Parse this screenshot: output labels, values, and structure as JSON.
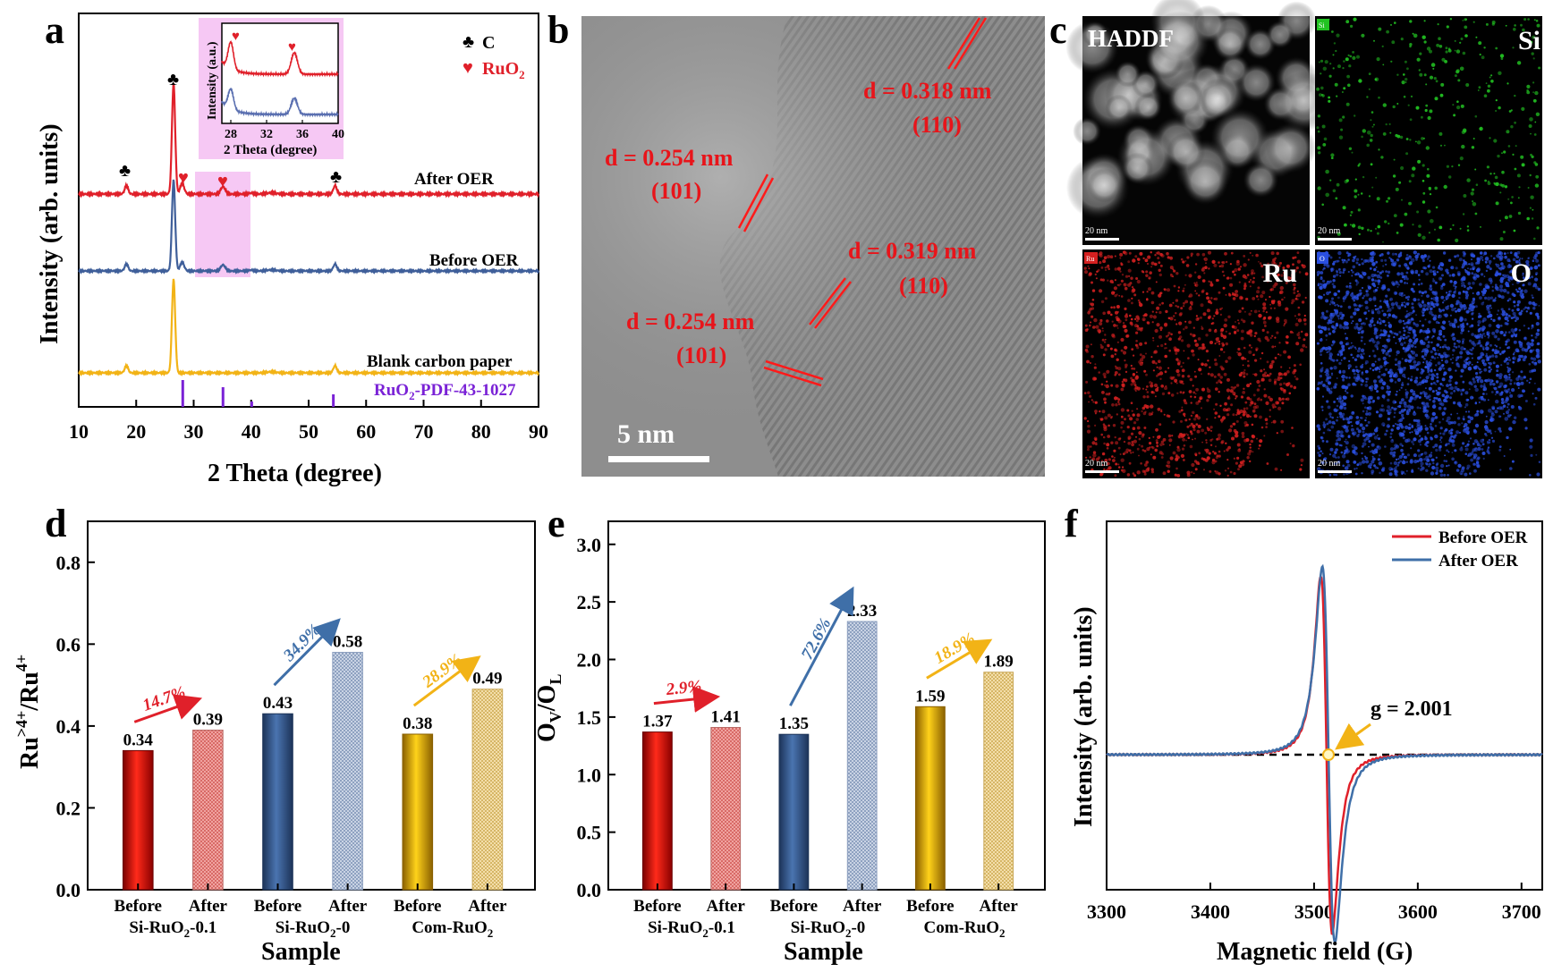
{
  "chart_data": [
    {
      "panel": "a",
      "type": "line",
      "xlabel": "2 Theta (degree)",
      "ylabel": "Intensity (arb. units)",
      "xlim": [
        10,
        90
      ],
      "xticks": [
        "10",
        "20",
        "30",
        "40",
        "50",
        "60",
        "70",
        "80",
        "90"
      ],
      "series": [
        {
          "name": "After OER",
          "color": "#e0202a"
        },
        {
          "name": "Before OER",
          "color": "#3f5f9a"
        },
        {
          "name": "Blank carbon paper",
          "color": "#f2b316"
        },
        {
          "name": "RuO2-PDF-43-1027",
          "color": "#7a22d6",
          "sticks": [
            28.1,
            35.1,
            40.1,
            54.3
          ]
        }
      ],
      "legend": {
        "c_label": "C",
        "ruo2_label": "RuO",
        "ruo2_sub": "2",
        "c_symbol": "♣",
        "ruo2_symbol": "♥"
      },
      "inset": {
        "ylabel": "Intensity (a.u.)",
        "xlabel": "2 Theta (degree)",
        "xticks": [
          "28",
          "32",
          "36",
          "40"
        ],
        "xlim": [
          27,
          40
        ]
      }
    },
    {
      "panel": "b",
      "type": "other",
      "annotations": [
        {
          "d": "d = 0.318 nm",
          "hkl": "(110)"
        },
        {
          "d": "d = 0.254 nm",
          "hkl": "(101)"
        },
        {
          "d": "d = 0.319 nm",
          "hkl": "(110)"
        },
        {
          "d": "d = 0.254 nm",
          "hkl": "(101)"
        }
      ],
      "scalebar": "5 nm"
    },
    {
      "panel": "c",
      "type": "other",
      "maps": [
        {
          "label": "HADDF",
          "tag": "",
          "color": "#e8e8e8"
        },
        {
          "label": "Si",
          "tag": "Si",
          "color": "#22c322"
        },
        {
          "label": "Ru",
          "tag": "Ru",
          "color": "#d42020"
        },
        {
          "label": "O",
          "tag": "O",
          "color": "#2a4fe0"
        }
      ],
      "scalebar": "20 nm"
    },
    {
      "panel": "d",
      "type": "bar",
      "xlabel": "Sample",
      "ylabel": "Ru>4+/Ru4+",
      "ylim": [
        0.0,
        0.9
      ],
      "yticks": [
        "0.0",
        "0.2",
        "0.4",
        "0.6",
        "0.8"
      ],
      "categories": [
        "Before",
        "After",
        "Before",
        "After",
        "Before",
        "After"
      ],
      "groups": [
        "Si-RuO2-0.1",
        "Si-RuO2-0",
        "Com-RuO2"
      ],
      "values": [
        0.34,
        0.39,
        0.43,
        0.58,
        0.38,
        0.49
      ],
      "labels": [
        "0.34",
        "0.39",
        "0.43",
        "0.58",
        "0.38",
        "0.49"
      ],
      "arrows": [
        "14.7%",
        "34.9%",
        "28.9%"
      ]
    },
    {
      "panel": "e",
      "type": "bar",
      "xlabel": "Sample",
      "ylabel": "OV/OL",
      "ylim": [
        0.0,
        3.2
      ],
      "yticks": [
        "0.0",
        "0.5",
        "1.0",
        "1.5",
        "2.0",
        "2.5",
        "3.0"
      ],
      "categories": [
        "Before",
        "After",
        "Before",
        "After",
        "Before",
        "After"
      ],
      "groups": [
        "Si-RuO2-0.1",
        "Si-RuO2-0",
        "Com-RuO2"
      ],
      "values": [
        1.37,
        1.41,
        1.35,
        2.33,
        1.59,
        1.89
      ],
      "labels": [
        "1.37",
        "1.41",
        "1.35",
        "2.33",
        "1.59",
        "1.89"
      ],
      "arrows": [
        "2.9%",
        "72.6%",
        "18.9%"
      ]
    },
    {
      "panel": "f",
      "type": "line",
      "xlabel": "Magnetic field (G)",
      "ylabel": "Intensity (arb. units)",
      "xlim": [
        3300,
        3720
      ],
      "xticks": [
        "3300",
        "3400",
        "3500",
        "3600",
        "3700"
      ],
      "series": [
        {
          "name": "Before OER",
          "color": "#e0202a"
        },
        {
          "name": "After OER",
          "color": "#3f6fa8"
        }
      ],
      "annotation": "g = 2.001"
    }
  ],
  "panel_letters": [
    "a",
    "b",
    "c",
    "d",
    "e",
    "f"
  ],
  "colors": {
    "red": "#e0202a",
    "blue": "#3f5f9a",
    "gold": "#f2b316",
    "purple": "#7a22d6",
    "pink": "#f6c8f4"
  }
}
